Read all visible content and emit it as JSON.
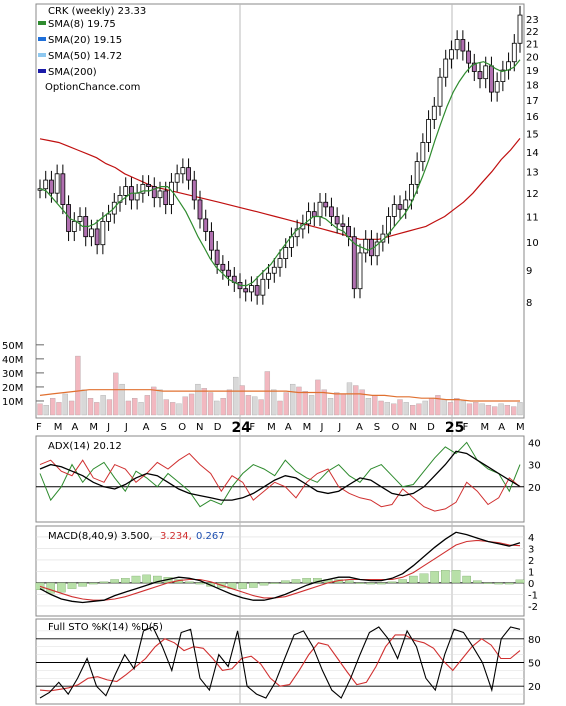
{
  "chart_data": {
    "type": "stock-chart",
    "ticker_title": "CRK (weekly) 23.33",
    "watermark": "OptionChance.com",
    "legend": [
      {
        "label": "SMA(8) 19.75",
        "color": "#2e8b2e"
      },
      {
        "label": "SMA(20) 19.15",
        "color": "#1e6fd9"
      },
      {
        "label": "SMA(50) 14.72",
        "color": "#8ec8f0"
      },
      {
        "label": "SMA(200)",
        "color": "#1a1aa8"
      }
    ],
    "colors": {
      "up": "#f2f27a",
      "down": "#d03030",
      "sma8": "#2e8b2e",
      "sma20_band": "#1e6fd9",
      "sma50": "#c01010",
      "volume_up": "#f2b8c0",
      "volume_down": "#d8d8d8",
      "volume_ma": "#e07030",
      "adx": "#000000",
      "plus_di": "#2e8b2e",
      "minus_di": "#d03030",
      "macd": "#000000",
      "signal": "#d03030",
      "hist": "#b8e0a8",
      "stoch_k": "#000000",
      "stoch_d": "#d03030"
    },
    "price_axis": {
      "ticks": [
        8,
        9,
        10,
        11,
        12,
        13,
        14,
        15,
        16,
        17,
        18,
        19,
        20,
        21,
        22,
        23
      ],
      "ylim": [
        7.2,
        23.6
      ],
      "scale": "log"
    },
    "volume_axis": {
      "ticks": [
        "10M",
        "20M",
        "30M",
        "40M",
        "50M"
      ],
      "tick_values": [
        10,
        20,
        30,
        40,
        50
      ],
      "ylim": [
        0,
        57
      ]
    },
    "x_axis": {
      "months": [
        "F",
        "M",
        "A",
        "M",
        "J",
        "J",
        "A",
        "S",
        "O",
        "N",
        "D",
        "24",
        "F",
        "M",
        "A",
        "M",
        "J",
        "J",
        "A",
        "S",
        "O",
        "N",
        "D",
        "25",
        "F",
        "M",
        "A",
        "M"
      ],
      "bold_years": [
        "24",
        "25"
      ]
    },
    "weekly_close": [
      12.2,
      12.6,
      12.0,
      12.9,
      11.5,
      10.4,
      10.8,
      11.0,
      10.2,
      10.5,
      9.9,
      10.8,
      11.1,
      11.6,
      11.9,
      12.3,
      11.7,
      12.0,
      12.4,
      12.3,
      11.8,
      12.1,
      11.5,
      12.5,
      12.9,
      13.2,
      12.6,
      11.7,
      10.9,
      10.4,
      9.7,
      9.2,
      9.0,
      8.8,
      8.6,
      8.4,
      8.3,
      8.5,
      8.2,
      8.7,
      8.9,
      9.1,
      9.4,
      9.8,
      10.2,
      10.5,
      10.7,
      11.2,
      11.0,
      11.6,
      11.4,
      11.0,
      10.7,
      10.6,
      10.2,
      8.4,
      9.6,
      10.1,
      9.5,
      10.0,
      10.3,
      11.0,
      11.5,
      11.3,
      11.7,
      12.4,
      13.5,
      14.5,
      15.8,
      16.6,
      18.5,
      19.8,
      20.5,
      21.3,
      20.4,
      19.5,
      18.9,
      18.4,
      19.3,
      17.5,
      18.2,
      19.0,
      19.6,
      21.0,
      23.33
    ],
    "sma8": [
      12.2,
      12.1,
      11.8,
      11.5,
      11.2,
      10.9,
      10.8,
      10.6,
      10.6,
      10.7,
      10.9,
      11.1,
      11.3,
      11.6,
      11.8,
      12.0,
      12.0,
      12.1,
      12.1,
      12.2,
      12.3,
      12.3,
      12.0,
      11.6,
      11.2,
      10.7,
      10.2,
      9.8,
      9.4,
      9.1,
      8.9,
      8.7,
      8.6,
      8.5,
      8.5,
      8.6,
      8.8,
      9.0,
      9.2,
      9.5,
      9.8,
      10.1,
      10.4,
      10.6,
      10.8,
      11.0,
      11.0,
      10.9,
      10.7,
      10.5,
      10.4,
      10.1,
      9.9,
      9.8,
      9.7,
      9.8,
      10.0,
      10.2,
      10.5,
      10.8,
      11.1,
      11.5,
      12.1,
      12.8,
      13.6,
      14.6,
      15.6,
      16.6,
      17.5,
      18.2,
      18.8,
      19.3,
      19.5,
      19.6,
      19.4,
      19.1,
      18.9,
      19.0,
      19.2,
      19.75
    ],
    "sma50": [
      14.7,
      14.6,
      14.5,
      14.3,
      14.1,
      13.9,
      13.7,
      13.4,
      13.2,
      12.9,
      12.7,
      12.5,
      12.3,
      12.2,
      12.1,
      12.0,
      11.9,
      11.8,
      11.7,
      11.6,
      11.5,
      11.4,
      11.3,
      11.2,
      11.1,
      11.0,
      10.9,
      10.8,
      10.7,
      10.6,
      10.5,
      10.4,
      10.3,
      10.2,
      10.1,
      10.1,
      10.1,
      10.2,
      10.3,
      10.4,
      10.5,
      10.6,
      10.8,
      11.0,
      11.3,
      11.6,
      12.0,
      12.5,
      13.0,
      13.6,
      14.1,
      14.72
    ],
    "volume_millions": [
      8,
      7,
      12,
      9,
      15,
      10,
      42,
      18,
      12,
      9,
      14,
      11,
      30,
      22,
      10,
      12,
      9,
      14,
      20,
      18,
      11,
      9,
      8,
      13,
      15,
      22,
      19,
      16,
      10,
      12,
      18,
      27,
      21,
      14,
      13,
      11,
      31,
      18,
      10,
      16,
      22,
      20,
      17,
      14,
      25,
      18,
      12,
      16,
      15,
      23,
      21,
      18,
      12,
      14,
      10,
      9,
      8,
      11,
      9,
      7,
      8,
      10,
      12,
      14,
      11,
      9,
      12,
      10,
      8,
      9,
      8,
      7,
      6,
      8,
      7,
      6,
      9
    ],
    "volume_ma_millions": [
      14,
      15,
      16,
      17,
      18,
      18,
      18,
      18,
      18,
      18,
      17,
      17,
      17,
      17,
      17,
      17,
      17,
      17,
      17,
      17,
      17,
      16,
      16,
      16,
      15,
      15,
      15,
      14,
      14,
      13,
      13,
      12,
      12,
      11,
      11,
      10,
      10,
      10,
      10,
      10
    ],
    "adx_panel": {
      "label": "ADX(14) 20.12",
      "ticks": [
        20,
        30,
        40
      ],
      "ylim": [
        5,
        42
      ],
      "adx": [
        28,
        30,
        29,
        27,
        25,
        22,
        20,
        19,
        21,
        24,
        26,
        25,
        22,
        19,
        17,
        16,
        15,
        14,
        14,
        15,
        17,
        20,
        23,
        25,
        24,
        21,
        18,
        17,
        18,
        21,
        24,
        23,
        20,
        17,
        16,
        17,
        20,
        25,
        30,
        36,
        35,
        32,
        29,
        26,
        23,
        20.12
      ],
      "plus_di": [
        26,
        14,
        20,
        30,
        22,
        28,
        31,
        24,
        18,
        27,
        24,
        20,
        26,
        22,
        18,
        11,
        14,
        12,
        20,
        26,
        30,
        28,
        25,
        32,
        27,
        24,
        22,
        27,
        30,
        25,
        22,
        28,
        30,
        25,
        20,
        21,
        27,
        33,
        38,
        35,
        40,
        32,
        28,
        26,
        18,
        30
      ],
      "minus_di": [
        30,
        32,
        27,
        25,
        32,
        24,
        22,
        30,
        28,
        22,
        26,
        31,
        28,
        32,
        35,
        30,
        26,
        18,
        25,
        22,
        14,
        18,
        22,
        20,
        15,
        22,
        26,
        28,
        20,
        17,
        15,
        14,
        11,
        12,
        19,
        15,
        11,
        9,
        10,
        13,
        22,
        18,
        12,
        15,
        24,
        20
      ]
    },
    "macd_panel": {
      "label": "MACD(8,40,9) 3.500,",
      "signal_label": "3.234,",
      "hist_label": "0.267",
      "ticks": [
        -2,
        -1,
        0,
        1,
        2,
        3,
        4
      ],
      "ylim": [
        -2.7,
        4.6
      ],
      "macd": [
        -0.5,
        -1.0,
        -1.4,
        -1.6,
        -1.7,
        -1.6,
        -1.5,
        -1.1,
        -0.8,
        -0.5,
        -0.2,
        0.1,
        0.3,
        0.5,
        0.4,
        0.2,
        -0.2,
        -0.6,
        -1.0,
        -1.3,
        -1.5,
        -1.5,
        -1.3,
        -1.0,
        -0.6,
        -0.2,
        0.1,
        0.3,
        0.5,
        0.5,
        0.3,
        0.2,
        0.2,
        0.4,
        0.8,
        1.5,
        2.3,
        3.1,
        3.8,
        4.4,
        4.2,
        3.9,
        3.6,
        3.4,
        3.2,
        3.5
      ],
      "signal": [
        -0.3,
        -0.6,
        -0.9,
        -1.2,
        -1.4,
        -1.5,
        -1.5,
        -1.4,
        -1.2,
        -0.9,
        -0.6,
        -0.3,
        0.0,
        0.2,
        0.3,
        0.3,
        0.1,
        -0.2,
        -0.5,
        -0.8,
        -1.1,
        -1.3,
        -1.3,
        -1.2,
        -0.9,
        -0.6,
        -0.3,
        0.0,
        0.2,
        0.3,
        0.3,
        0.3,
        0.3,
        0.3,
        0.5,
        0.9,
        1.5,
        2.1,
        2.7,
        3.3,
        3.6,
        3.7,
        3.6,
        3.5,
        3.3,
        3.234
      ],
      "hist": [
        -0.6,
        -0.9,
        -0.8,
        -0.5,
        -0.3,
        -0.1,
        0.1,
        0.3,
        0.4,
        0.6,
        0.7,
        0.6,
        0.5,
        0.3,
        0.1,
        -0.1,
        -0.3,
        -0.4,
        -0.5,
        -0.5,
        -0.4,
        -0.2,
        0.0,
        0.2,
        0.3,
        0.4,
        0.4,
        0.3,
        0.3,
        0.2,
        0.0,
        -0.1,
        -0.1,
        0.1,
        0.3,
        0.6,
        0.8,
        1.0,
        1.1,
        1.1,
        0.6,
        0.2,
        0.0,
        -0.1,
        -0.1,
        0.267
      ]
    },
    "stoch_panel": {
      "label": "Full STO %K(14) %D(5)",
      "ticks": [
        20,
        50,
        80
      ],
      "ylim": [
        0,
        100
      ],
      "k": [
        5,
        12,
        25,
        10,
        30,
        55,
        20,
        8,
        35,
        60,
        42,
        90,
        95,
        70,
        40,
        88,
        92,
        30,
        15,
        60,
        45,
        90,
        20,
        10,
        5,
        25,
        55,
        85,
        90,
        70,
        40,
        15,
        5,
        30,
        60,
        88,
        95,
        80,
        55,
        90,
        70,
        30,
        15,
        60,
        92,
        88,
        70,
        50,
        15,
        80,
        95,
        92
      ],
      "d": [
        15,
        14,
        16,
        18,
        22,
        30,
        32,
        28,
        26,
        35,
        45,
        55,
        70,
        80,
        75,
        65,
        70,
        68,
        55,
        40,
        42,
        55,
        58,
        48,
        30,
        20,
        22,
        40,
        60,
        75,
        72,
        55,
        38,
        22,
        25,
        45,
        70,
        85,
        85,
        78,
        75,
        68,
        52,
        40,
        55,
        70,
        80,
        72,
        55,
        55,
        65
      ]
    }
  }
}
